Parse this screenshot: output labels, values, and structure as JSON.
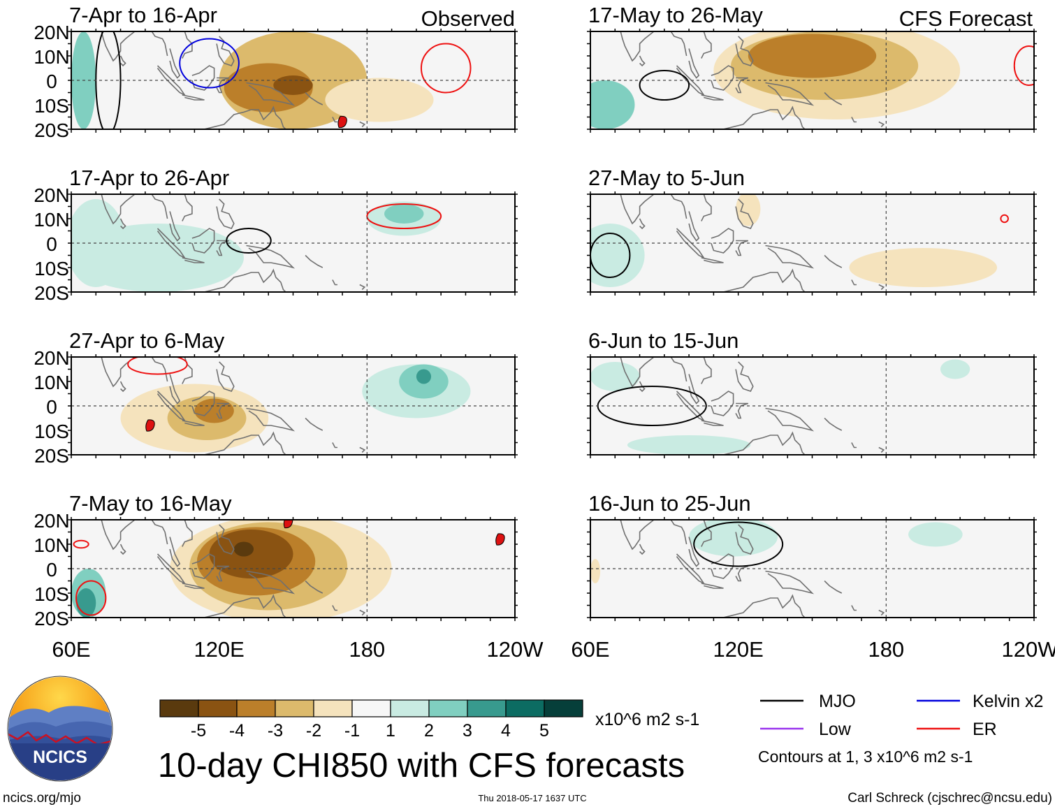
{
  "title": "10-day CHI850 with CFS forecasts",
  "observed_label": "Observed",
  "forecast_label": "CFS Forecast",
  "footer": {
    "left": "ncics.org/mjo",
    "center": "Thu 2018-05-17 1637 UTC",
    "right": "Carl Schreck (cjschrec@ncsu.edu)"
  },
  "logo_text": "NCICS",
  "colors": {
    "mjo": "#000000",
    "kelvin": "#0000dd",
    "low": "#9933ee",
    "er": "#ee1111",
    "land": "#707070",
    "background": "#f5f5f5",
    "cyclone": "#dd1111"
  },
  "colorbar": {
    "colors": [
      "#5a3a0e",
      "#8a5312",
      "#bb7f2a",
      "#dcba6c",
      "#f5e3bd",
      "#f6f6f6",
      "#c9ebe2",
      "#80cfc0",
      "#389a8e",
      "#0c6c62",
      "#063f3a"
    ],
    "tick_labels": [
      "-5",
      "-4",
      "-3",
      "-2",
      "-1",
      "1",
      "2",
      "3",
      "4",
      "5"
    ],
    "units": "x10^6 m2 s-1"
  },
  "legend": {
    "items": [
      {
        "label": "MJO",
        "color": "#000000"
      },
      {
        "label": "Kelvin x2",
        "color": "#0000dd"
      },
      {
        "label": "Low",
        "color": "#9933ee"
      },
      {
        "label": "ER",
        "color": "#ee1111"
      }
    ],
    "note": "Contours at 1, 3 x10^6 m2 s-1"
  },
  "chart_data": {
    "type": "heatmap",
    "variable": "CHI850 anomaly (x10^6 m2 s-1)",
    "x_ticks": [
      "60E",
      "120E",
      "180",
      "120W"
    ],
    "y_ticks": [
      "20N",
      "10N",
      "0",
      "10S",
      "20S"
    ],
    "xlim_deg_east": [
      60,
      240
    ],
    "ylim_deg_lat": [
      -20,
      20
    ],
    "panels": [
      {
        "id": "obs-1",
        "column": "observed",
        "period": "7-Apr to 16-Apr",
        "blobs": [
          {
            "lon": 150,
            "lat": 0,
            "rx": 30,
            "ry": 20,
            "value": -2
          },
          {
            "lon": 140,
            "lat": -3,
            "rx": 18,
            "ry": 10,
            "value": -3
          },
          {
            "lon": 150,
            "lat": -2,
            "rx": 8,
            "ry": 4,
            "value": -4
          },
          {
            "lon": 185,
            "lat": -8,
            "rx": 22,
            "ry": 9,
            "value": -1
          },
          {
            "lon": 65,
            "lat": 0,
            "rx": 5,
            "ry": 20,
            "value": 2
          }
        ],
        "contours": [
          {
            "type": "kelvin",
            "lon": 116,
            "lat": 7,
            "rx": 12,
            "ry": 10
          },
          {
            "type": "er",
            "lon": 212,
            "lat": 5,
            "rx": 10,
            "ry": 10
          },
          {
            "type": "mjo",
            "lon": 75,
            "lat": 0,
            "rx": 5,
            "ry": 22
          }
        ],
        "cyclones": [
          {
            "lon": 170,
            "lat": -17
          }
        ]
      },
      {
        "id": "obs-2",
        "column": "observed",
        "period": "17-Apr to 26-Apr",
        "blobs": [
          {
            "lon": 95,
            "lat": -6,
            "rx": 35,
            "ry": 14,
            "value": 1
          },
          {
            "lon": 70,
            "lat": 0,
            "rx": 12,
            "ry": 18,
            "value": 1
          },
          {
            "lon": 195,
            "lat": 10,
            "rx": 15,
            "ry": 7,
            "value": 1
          },
          {
            "lon": 195,
            "lat": 12,
            "rx": 8,
            "ry": 4,
            "value": 2
          }
        ],
        "contours": [
          {
            "type": "er",
            "lon": 195,
            "lat": 11,
            "rx": 15,
            "ry": 5
          },
          {
            "type": "mjo",
            "lon": 132,
            "lat": 1,
            "rx": 9,
            "ry": 5
          }
        ],
        "cyclones": []
      },
      {
        "id": "obs-3",
        "column": "observed",
        "period": "27-Apr to 6-May",
        "blobs": [
          {
            "lon": 110,
            "lat": -5,
            "rx": 30,
            "ry": 14,
            "value": -1
          },
          {
            "lon": 115,
            "lat": -5,
            "rx": 16,
            "ry": 9,
            "value": -2
          },
          {
            "lon": 118,
            "lat": -2,
            "rx": 8,
            "ry": 5,
            "value": -3
          },
          {
            "lon": 200,
            "lat": 6,
            "rx": 22,
            "ry": 11,
            "value": 1
          },
          {
            "lon": 203,
            "lat": 10,
            "rx": 10,
            "ry": 7,
            "value": 2
          },
          {
            "lon": 203,
            "lat": 12,
            "rx": 3,
            "ry": 3,
            "value": 3
          }
        ],
        "contours": [
          {
            "type": "er",
            "lon": 95,
            "lat": 17,
            "rx": 12,
            "ry": 4
          }
        ],
        "cyclones": [
          {
            "lon": 92,
            "lat": -8
          }
        ]
      },
      {
        "id": "obs-4",
        "column": "observed",
        "period": "7-May to 16-May",
        "blobs": [
          {
            "lon": 145,
            "lat": 0,
            "rx": 45,
            "ry": 22,
            "value": -1
          },
          {
            "lon": 140,
            "lat": 1,
            "rx": 32,
            "ry": 18,
            "value": -2
          },
          {
            "lon": 135,
            "lat": 3,
            "rx": 24,
            "ry": 14,
            "value": -3
          },
          {
            "lon": 133,
            "lat": 6,
            "rx": 17,
            "ry": 10,
            "value": -4
          },
          {
            "lon": 130,
            "lat": 8,
            "rx": 4,
            "ry": 3,
            "value": -5
          },
          {
            "lon": 67,
            "lat": -10,
            "rx": 7,
            "ry": 10,
            "value": 2
          },
          {
            "lon": 66,
            "lat": -14,
            "rx": 4,
            "ry": 6,
            "value": 3
          }
        ],
        "contours": [
          {
            "type": "er",
            "lon": 68,
            "lat": -12,
            "rx": 6,
            "ry": 7
          },
          {
            "type": "er",
            "lon": 64,
            "lat": 10,
            "rx": 3,
            "ry": 1.5
          }
        ],
        "cyclones": [
          {
            "lon": 148,
            "lat": 19
          },
          {
            "lon": 234,
            "lat": 12
          }
        ]
      },
      {
        "id": "fc-1",
        "column": "forecast",
        "period": "17-May to 26-May",
        "blobs": [
          {
            "lon": 160,
            "lat": 4,
            "rx": 50,
            "ry": 20,
            "value": -1
          },
          {
            "lon": 155,
            "lat": 6,
            "rx": 38,
            "ry": 14,
            "value": -2
          },
          {
            "lon": 150,
            "lat": 10,
            "rx": 26,
            "ry": 9,
            "value": -3
          },
          {
            "lon": 66,
            "lat": -10,
            "rx": 12,
            "ry": 10,
            "value": 2
          }
        ],
        "contours": [
          {
            "type": "mjo",
            "lon": 90,
            "lat": -2,
            "rx": 10,
            "ry": 6
          },
          {
            "type": "er",
            "lon": 238,
            "lat": 6,
            "rx": 6,
            "ry": 8
          }
        ],
        "cyclones": []
      },
      {
        "id": "fc-2",
        "column": "forecast",
        "period": "27-May to 5-Jun",
        "blobs": [
          {
            "lon": 195,
            "lat": -10,
            "rx": 30,
            "ry": 8,
            "value": -1
          },
          {
            "lon": 124,
            "lat": 14,
            "rx": 5,
            "ry": 7,
            "value": -1
          },
          {
            "lon": 68,
            "lat": -5,
            "rx": 14,
            "ry": 13,
            "value": 1
          }
        ],
        "contours": [
          {
            "type": "mjo",
            "lon": 68,
            "lat": -5,
            "rx": 8,
            "ry": 9
          },
          {
            "type": "er",
            "lon": 228,
            "lat": 10,
            "rx": 1.5,
            "ry": 1.5
          }
        ],
        "cyclones": []
      },
      {
        "id": "fc-3",
        "column": "forecast",
        "period": "6-Jun to 15-Jun",
        "blobs": [
          {
            "lon": 100,
            "lat": -16,
            "rx": 25,
            "ry": 4,
            "value": 1
          },
          {
            "lon": 70,
            "lat": 12,
            "rx": 10,
            "ry": 6,
            "value": 1
          },
          {
            "lon": 208,
            "lat": 15,
            "rx": 6,
            "ry": 4,
            "value": 1
          }
        ],
        "contours": [
          {
            "type": "mjo",
            "lon": 85,
            "lat": 0,
            "rx": 22,
            "ry": 8
          }
        ],
        "cyclones": []
      },
      {
        "id": "fc-4",
        "column": "forecast",
        "period": "16-Jun to 25-Jun",
        "blobs": [
          {
            "lon": 118,
            "lat": 13,
            "rx": 18,
            "ry": 8,
            "value": 1
          },
          {
            "lon": 200,
            "lat": 14,
            "rx": 11,
            "ry": 5,
            "value": 1
          },
          {
            "lon": 62,
            "lat": -1,
            "rx": 2,
            "ry": 5,
            "value": -1
          }
        ],
        "contours": [
          {
            "type": "mjo",
            "lon": 120,
            "lat": 10,
            "rx": 18,
            "ry": 9
          }
        ],
        "cyclones": []
      }
    ]
  }
}
